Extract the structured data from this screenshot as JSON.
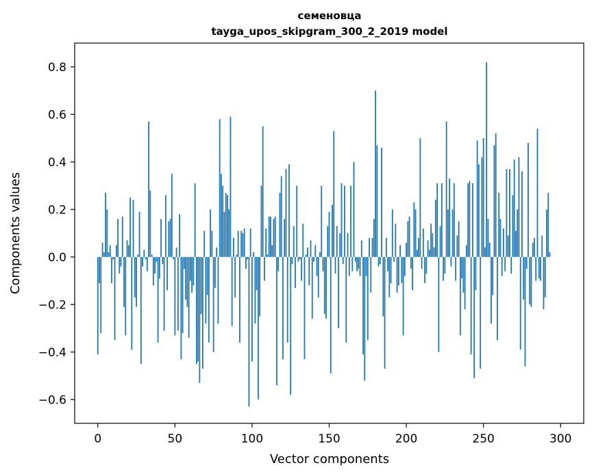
{
  "chart_data": {
    "type": "bar",
    "title": "семеновца",
    "subtitle": "tayga_upos_skipgram_300_2_2019 model",
    "xlabel": "Vector components",
    "ylabel": "Components values",
    "xlim": [
      -15,
      315
    ],
    "ylim": [
      -0.7,
      0.9
    ],
    "xticks": [
      0,
      50,
      100,
      150,
      200,
      250,
      300
    ],
    "yticks": [
      -0.6,
      -0.4,
      -0.2,
      0.0,
      0.2,
      0.4,
      0.6,
      0.8
    ],
    "xtick_labels": [
      "0",
      "50",
      "100",
      "150",
      "200",
      "250",
      "300"
    ],
    "ytick_labels": [
      "−0.6",
      "−0.4",
      "−0.2",
      "0.0",
      "0.2",
      "0.4",
      "0.6",
      "0.8"
    ],
    "bar_color": "#1f77b4",
    "values": [
      -0.41,
      -0.11,
      -0.32,
      0.06,
      0.02,
      0.27,
      0.2,
      0.02,
      0.05,
      -0.11,
      -0.01,
      -0.35,
      0.05,
      0.16,
      -0.07,
      -0.04,
      0.17,
      -0.21,
      -0.33,
      0.07,
      0.05,
      0.25,
      -0.39,
      0.24,
      -0.17,
      -0.21,
      0.01,
      0.19,
      -0.45,
      -0.04,
      0.03,
      -0.01,
      -0.06,
      0.57,
      0.28,
      0.01,
      -0.12,
      -0.07,
      -0.02,
      -0.36,
      -0.09,
      0.16,
      -0.03,
      -0.31,
      0.26,
      -0.14,
      0.15,
      0.16,
      0.35,
      -0.01,
      -0.33,
      0.04,
      -0.31,
      0.18,
      -0.43,
      -0.32,
      -0.05,
      -0.18,
      -0.21,
      -0.34,
      -0.1,
      -0.15,
      -0.12,
      0.31,
      -0.45,
      -0.44,
      -0.53,
      -0.24,
      -0.47,
      0.11,
      -0.28,
      -0.16,
      -0.36,
      0.2,
      0.11,
      -0.4,
      -0.13,
      0.04,
      -0.28,
      0.58,
      0.35,
      0.3,
      0.19,
      0.27,
      0.26,
      0.2,
      0.59,
      -0.29,
      0.08,
      -0.17,
      0.01,
      0.11,
      -0.36,
      0.11,
      0.1,
      0.12,
      -0.05,
      -0.01,
      -0.63,
      0.12,
      -0.44,
      0.02,
      -0.28,
      -0.14,
      -0.6,
      -0.25,
      0.3,
      0.55,
      -0.1,
      0.12,
      0.01,
      0.17,
      0.17,
      0.05,
      0.16,
      0.17,
      -0.54,
      -0.06,
      0.27,
      0.34,
      -0.43,
      0.16,
      0.37,
      -0.36,
      0.39,
      -0.58,
      -0.03,
      0.13,
      -0.13,
      0.3,
      -0.02,
      -0.01,
      -0.1,
      0.14,
      -0.43,
      0.01,
      0.04,
      -0.12,
      0.07,
      -0.26,
      -0.02,
      0.05,
      -0.08,
      -0.17,
      0.02,
      0.3,
      -0.06,
      -0.24,
      -0.26,
      0.13,
      0.19,
      -0.49,
      0.22,
      0.53,
      -0.07,
      0.13,
      -0.3,
      0.1,
      0.31,
      -0.03,
      0.3,
      -0.36,
      0.1,
      -0.08,
      0.3,
      -0.06,
      0.4,
      -0.02,
      -0.06,
      -0.05,
      -0.08,
      0.07,
      -0.41,
      -0.52,
      -0.08,
      -0.35,
      0.08,
      -0.15,
      0.08,
      0.16,
      0.7,
      0.47,
      -0.04,
      -0.03,
      0.46,
      -0.25,
      -0.47,
      0.08,
      -0.06,
      -0.17,
      -0.11,
      0.2,
      -0.02,
      0.14,
      -0.15,
      -0.12,
      0.05,
      -0.11,
      -0.33,
      -0.08,
      0.06,
      0.15,
      0.17,
      -0.05,
      -0.14,
      0.23,
      0.2,
      0.03,
      0.08,
      0.5,
      -0.05,
      0.12,
      -0.11,
      -0.07,
      0.07,
      0.03,
      0.14,
      0.1,
      0.04,
      0.24,
      0.31,
      -0.4,
      0.13,
      0.31,
      -0.1,
      -0.07,
      0.57,
      0.2,
      0.33,
      -0.04,
      0.2,
      0.31,
      -0.1,
      0.09,
      0.15,
      -0.33,
      -0.09,
      -0.15,
      -0.22,
      0.05,
      0.31,
      0.32,
      -0.41,
      0.31,
      -0.51,
      -0.14,
      0.49,
      0.39,
      -0.47,
      0.42,
      0.5,
      0.04,
      0.82,
      0.16,
      0.06,
      -0.28,
      -0.16,
      0.47,
      0.52,
      -0.35,
      0.27,
      0.16,
      -0.08,
      0.12,
      -0.06,
      0.37,
      0.09,
      0.37,
      -0.07,
      0.26,
      0.41,
      0.11,
      0.2,
      0.42,
      -0.39,
      0.36,
      -0.18,
      -0.46,
      -0.05,
      0.48,
      -0.2,
      -0.21,
      0.06,
      0.08,
      -0.1,
      0.54,
      -0.09,
      -0.1,
      0.09,
      -0.22,
      -0.17,
      0.2,
      0.27,
      0.02
    ]
  }
}
